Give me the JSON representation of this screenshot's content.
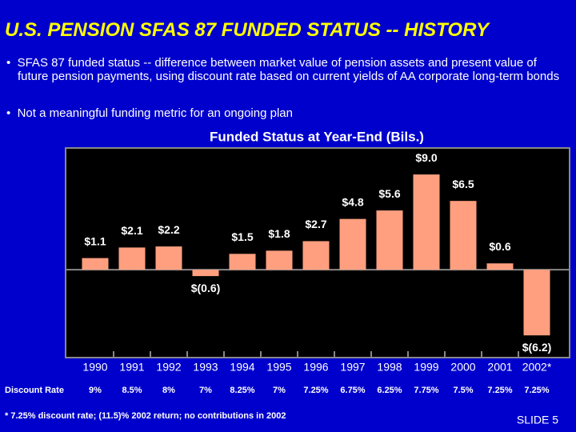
{
  "title": "U.S. PENSION SFAS 87 FUNDED STATUS -- HISTORY",
  "bullets": [
    "SFAS 87 funded status -- difference between market value of pension assets and present value of future pension payments, using discount rate based on current yields of AA corporate long-term bonds",
    "Not a meaningful funding metric for an ongoing plan"
  ],
  "chart_data": {
    "type": "bar",
    "title": "Funded Status at Year-End (Bils.)",
    "categories": [
      "1990",
      "1991",
      "1992",
      "1993",
      "1994",
      "1995",
      "1996",
      "1997",
      "1998",
      "1999",
      "2000",
      "2001",
      "2002*"
    ],
    "values": [
      1.1,
      2.1,
      2.2,
      -0.6,
      1.5,
      1.8,
      2.7,
      4.8,
      5.6,
      9.0,
      6.5,
      0.6,
      -6.2
    ],
    "value_labels": [
      "$1.1",
      "$2.1",
      "$2.2",
      "$(0.6)",
      "$1.5",
      "$1.8",
      "$2.7",
      "$4.8",
      "$5.6",
      "$9.0",
      "$6.5",
      "$0.6",
      "$(6.2)"
    ],
    "color": "#ff9f7f",
    "ylim": [
      -8.3,
      11.5
    ],
    "discount_rate_label": "Discount Rate",
    "discount_rates": [
      "9%",
      "8.5%",
      "8%",
      "7%",
      "8.25%",
      "7%",
      "7.25%",
      "6.75%",
      "6.25%",
      "7.75%",
      "7.5%",
      "7.25%",
      "7.25%"
    ]
  },
  "footnote": "* 7.25% discount rate; (11.5)% 2002 return; no contributions in 2002",
  "slide_label": "SLIDE 5"
}
